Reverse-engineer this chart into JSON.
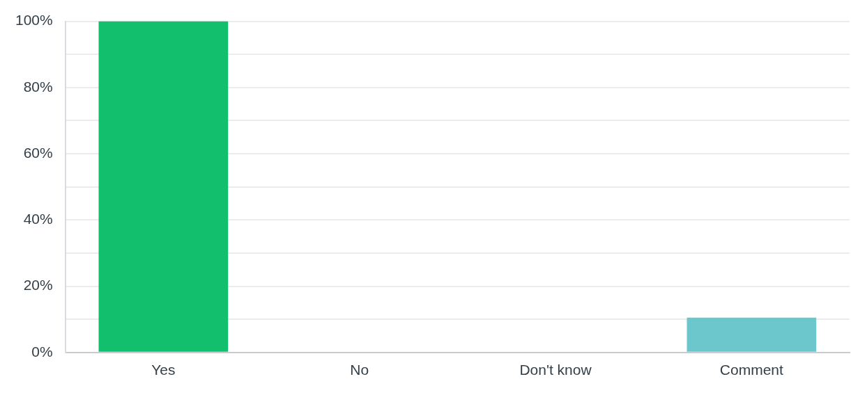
{
  "chart_data": {
    "type": "bar",
    "categories": [
      "Yes",
      "No",
      "Don't know",
      "Comment"
    ],
    "values": [
      100,
      0,
      0,
      10.5
    ],
    "colors": [
      "#12bf6c",
      "#12bf6c",
      "#12bf6c",
      "#6cc7cc"
    ],
    "ylim": [
      0,
      100
    ],
    "yticks": [
      {
        "value": 0,
        "label": "0%"
      },
      {
        "value": 10,
        "label": null
      },
      {
        "value": 20,
        "label": "20%"
      },
      {
        "value": 30,
        "label": null
      },
      {
        "value": 40,
        "label": "40%"
      },
      {
        "value": 50,
        "label": null
      },
      {
        "value": 60,
        "label": "60%"
      },
      {
        "value": 70,
        "label": null
      },
      {
        "value": 80,
        "label": "80%"
      },
      {
        "value": 90,
        "label": null
      },
      {
        "value": 100,
        "label": "100%"
      }
    ],
    "grid": "y",
    "legend": false
  }
}
